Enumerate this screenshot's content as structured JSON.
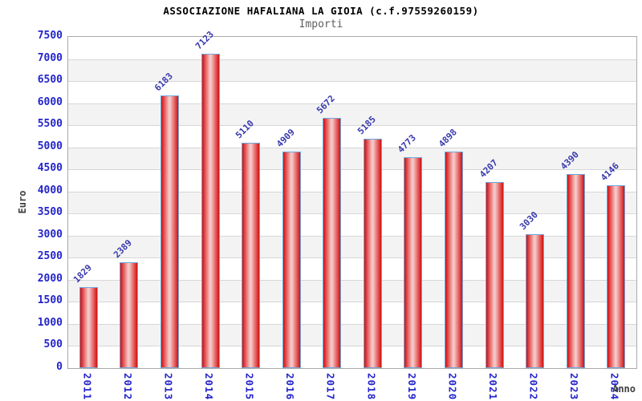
{
  "chart_data": {
    "type": "bar",
    "title": "ASSOCIAZIONE HAFALIANA LA GIOIA (c.f.97559260159)",
    "subtitle": "Importi",
    "xlabel": "Anno",
    "ylabel": "Euro",
    "categories": [
      "2011",
      "2012",
      "2013",
      "2014",
      "2015",
      "2016",
      "2017",
      "2018",
      "2019",
      "2020",
      "2021",
      "2022",
      "2023",
      "2024"
    ],
    "values": [
      1829,
      2389,
      6183,
      7123,
      5110,
      4909,
      5672,
      5185,
      4773,
      4898,
      4207,
      3030,
      4390,
      4146
    ],
    "ylim": [
      0,
      7500
    ],
    "ytick_step": 500,
    "legend": false,
    "grid": "horizontal-bands",
    "colors": {
      "title": "#000000",
      "subtitle": "#5f5f5f",
      "tick_label": "#2424cc",
      "value_label": "#3838ae",
      "axis_title": "#3f3f3f",
      "bar_dark": "#cc1111",
      "bar_mid": "#e45555",
      "bar_light": "#f5c8c8",
      "bar_border": "#6fa8dc",
      "band": "#f3f3f3",
      "gridline": "#d7d7d7",
      "plot_border": "#aaaaaa"
    }
  }
}
